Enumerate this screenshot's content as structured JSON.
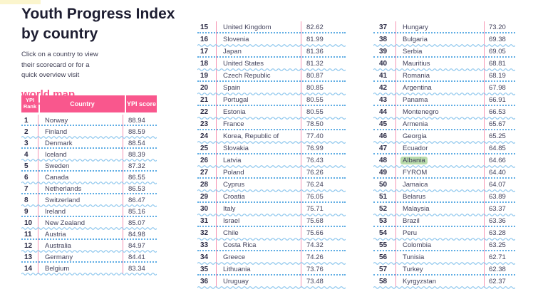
{
  "page": {
    "title": "Youth Progress Index\nby country",
    "subtitle": "Click on a country to view\ntheir scorecard or for a\nquick overview visit",
    "world_map_link": "world map"
  },
  "table": {
    "headers": {
      "rank": "YPI\nRank",
      "country": "Country",
      "score": "YPI score"
    },
    "highlighted_country": "Albania",
    "columns": [
      {
        "from_rank": 1,
        "to_rank": 14
      },
      {
        "from_rank": 15,
        "to_rank": 36
      },
      {
        "from_rank": 37,
        "to_rank": 58
      }
    ],
    "countries": [
      {
        "rank": 1,
        "name": "Norway",
        "score": "88.94"
      },
      {
        "rank": 2,
        "name": "Finland",
        "score": "88.59"
      },
      {
        "rank": 3,
        "name": "Denmark",
        "score": "88.54"
      },
      {
        "rank": 4,
        "name": "Iceland",
        "score": "88.39"
      },
      {
        "rank": 5,
        "name": "Sweden",
        "score": "87.32"
      },
      {
        "rank": 6,
        "name": "Canada",
        "score": "86.55"
      },
      {
        "rank": 7,
        "name": "Netherlands",
        "score": "86.53"
      },
      {
        "rank": 8,
        "name": "Switzerland",
        "score": "86.47"
      },
      {
        "rank": 9,
        "name": "Ireland",
        "score": "85.16"
      },
      {
        "rank": 10,
        "name": "New Zealand",
        "score": "85.07"
      },
      {
        "rank": 11,
        "name": "Austria",
        "score": "84.98"
      },
      {
        "rank": 12,
        "name": "Australia",
        "score": "84.97"
      },
      {
        "rank": 13,
        "name": "Germany",
        "score": "84.41"
      },
      {
        "rank": 14,
        "name": "Belgium",
        "score": "83.34"
      },
      {
        "rank": 15,
        "name": "United Kingdom",
        "score": "82.62"
      },
      {
        "rank": 16,
        "name": "Slovenia",
        "score": "81.99"
      },
      {
        "rank": 17,
        "name": "Japan",
        "score": "81.36"
      },
      {
        "rank": 18,
        "name": "United States",
        "score": "81.32"
      },
      {
        "rank": 19,
        "name": "Czech Republic",
        "score": "80.87"
      },
      {
        "rank": 20,
        "name": "Spain",
        "score": "80.85"
      },
      {
        "rank": 21,
        "name": "Portugal",
        "score": "80.55"
      },
      {
        "rank": 22,
        "name": "Estonia",
        "score": "80.55"
      },
      {
        "rank": 23,
        "name": "France",
        "score": "78.50"
      },
      {
        "rank": 24,
        "name": "Korea, Republic of",
        "score": "77.40"
      },
      {
        "rank": 25,
        "name": "Slovakia",
        "score": "76.99"
      },
      {
        "rank": 26,
        "name": "Latvia",
        "score": "76.43"
      },
      {
        "rank": 27,
        "name": "Poland",
        "score": "76.26"
      },
      {
        "rank": 28,
        "name": "Cyprus",
        "score": "76.24"
      },
      {
        "rank": 29,
        "name": "Croatia",
        "score": "76.05"
      },
      {
        "rank": 30,
        "name": "Italy",
        "score": "75.71"
      },
      {
        "rank": 31,
        "name": "Israel",
        "score": "75.68"
      },
      {
        "rank": 32,
        "name": "Chile",
        "score": "75.66"
      },
      {
        "rank": 33,
        "name": "Costa Rica",
        "score": "74.32"
      },
      {
        "rank": 34,
        "name": "Greece",
        "score": "74.26"
      },
      {
        "rank": 35,
        "name": "Lithuania",
        "score": "73.76"
      },
      {
        "rank": 36,
        "name": "Uruguay",
        "score": "73.48"
      },
      {
        "rank": 37,
        "name": "Hungary",
        "score": "73.20"
      },
      {
        "rank": 38,
        "name": "Bulgaria",
        "score": "69.38"
      },
      {
        "rank": 39,
        "name": "Serbia",
        "score": "69.05"
      },
      {
        "rank": 40,
        "name": "Mauritius",
        "score": "68.81"
      },
      {
        "rank": 41,
        "name": "Romania",
        "score": "68.19"
      },
      {
        "rank": 42,
        "name": "Argentina",
        "score": "67.98"
      },
      {
        "rank": 43,
        "name": "Panama",
        "score": "66.91"
      },
      {
        "rank": 44,
        "name": "Montenegro",
        "score": "66.53"
      },
      {
        "rank": 45,
        "name": "Armenia",
        "score": "65.67"
      },
      {
        "rank": 46,
        "name": "Georgia",
        "score": "65.25"
      },
      {
        "rank": 47,
        "name": "Ecuador",
        "score": "64.85"
      },
      {
        "rank": 48,
        "name": "Albania",
        "score": "64.66"
      },
      {
        "rank": 49,
        "name": "FYROM",
        "score": "64.40"
      },
      {
        "rank": 50,
        "name": "Jamaica",
        "score": "64.07"
      },
      {
        "rank": 51,
        "name": "Belarus",
        "score": "63.89"
      },
      {
        "rank": 52,
        "name": "Malaysia",
        "score": "63.37"
      },
      {
        "rank": 53,
        "name": "Brazil",
        "score": "63.36"
      },
      {
        "rank": 54,
        "name": "Peru",
        "score": "63.28"
      },
      {
        "rank": 55,
        "name": "Colombia",
        "score": "63.25"
      },
      {
        "rank": 56,
        "name": "Tunisia",
        "score": "62.71"
      },
      {
        "rank": 57,
        "name": "Turkey",
        "score": "62.38"
      },
      {
        "rank": 58,
        "name": "Kyrgyzstan",
        "score": "62.37"
      }
    ]
  },
  "colors": {
    "accent_pink": "#f9578d",
    "line_pink": "#f693b2",
    "dot_blue": "#5fade4",
    "wave_blue": "#8cc6ed",
    "highlight_green": "#b9dcab",
    "strip_yellow": "#fbf5cd",
    "title_ink": "#1d1d31",
    "body_ink": "#42425c"
  }
}
